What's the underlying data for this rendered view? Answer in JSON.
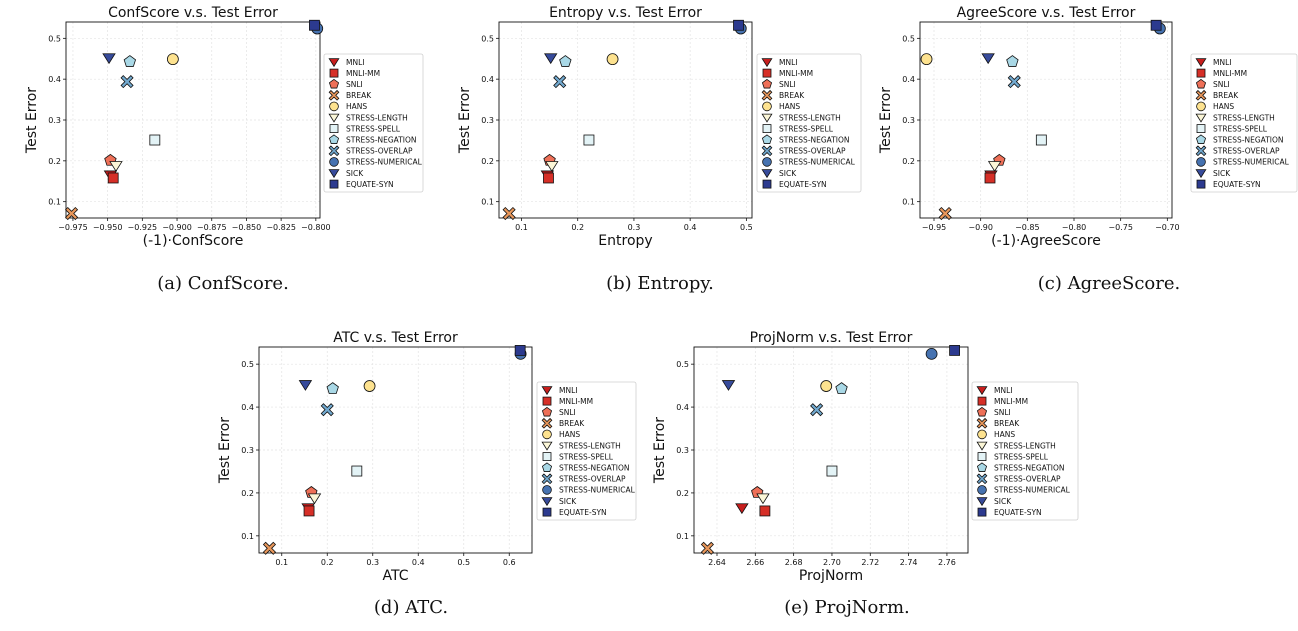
{
  "marker_styles": {
    "MNLI": {
      "shape": "tri-down",
      "color": "#c71e1d"
    },
    "MNLI-MM": {
      "shape": "square",
      "color": "#d62f27"
    },
    "SNLI": {
      "shape": "pentagon",
      "color": "#ee7058"
    },
    "BREAK": {
      "shape": "x-filled",
      "color": "#e8975b"
    },
    "HANS": {
      "shape": "circle",
      "color": "#fde28f"
    },
    "STRESS-LENGTH": {
      "shape": "tri-down",
      "color": "#fbf6d7"
    },
    "STRESS-SPELL": {
      "shape": "square",
      "color": "#e3f3f6"
    },
    "STRESS-NEGATION": {
      "shape": "pentagon",
      "color": "#a9d8e6"
    },
    "STRESS-OVERLAP": {
      "shape": "x-filled",
      "color": "#72a9cf"
    },
    "STRESS-NUMERICAL": {
      "shape": "circle",
      "color": "#4672b0"
    },
    "SICK": {
      "shape": "tri-down",
      "color": "#374b9b"
    },
    "EQUATE-SYN": {
      "shape": "square",
      "color": "#2c3a8f"
    }
  },
  "chart_data": [
    {
      "type": "scatter",
      "title": "ConfScore v.s. Test Error",
      "xlabel": "(-1)·ConfScore",
      "ylabel": "Test Error",
      "caption": "(a) ConfScore.",
      "xlim": [
        -0.98,
        -0.797
      ],
      "ylim": [
        0.06,
        0.54
      ],
      "xticks": [
        -0.975,
        -0.95,
        -0.925,
        -0.9,
        -0.875,
        -0.85,
        -0.825,
        -0.8
      ],
      "xtick_labels": [
        "−0.975",
        "−0.950",
        "−0.925",
        "−0.900",
        "−0.875",
        "−0.850",
        "−0.825",
        "−0.800"
      ],
      "yticks": [
        0.1,
        0.2,
        0.3,
        0.4,
        0.5
      ],
      "ytick_labels": [
        "0.1",
        "0.2",
        "0.3",
        "0.4",
        "0.5"
      ],
      "grid": true,
      "legend": "right",
      "series": [
        {
          "name": "MNLI",
          "x": -0.948,
          "y": 0.165
        },
        {
          "name": "MNLI-MM",
          "x": -0.946,
          "y": 0.158
        },
        {
          "name": "SNLI",
          "x": -0.948,
          "y": 0.201
        },
        {
          "name": "BREAK",
          "x": -0.976,
          "y": 0.071
        },
        {
          "name": "HANS",
          "x": -0.903,
          "y": 0.449
        },
        {
          "name": "STRESS-LENGTH",
          "x": -0.944,
          "y": 0.188
        },
        {
          "name": "STRESS-SPELL",
          "x": -0.916,
          "y": 0.251
        },
        {
          "name": "STRESS-NEGATION",
          "x": -0.934,
          "y": 0.443
        },
        {
          "name": "STRESS-OVERLAP",
          "x": -0.936,
          "y": 0.394
        },
        {
          "name": "STRESS-NUMERICAL",
          "x": -0.799,
          "y": 0.524
        },
        {
          "name": "SICK",
          "x": -0.949,
          "y": 0.452
        },
        {
          "name": "EQUATE-SYN",
          "x": -0.801,
          "y": 0.532
        }
      ]
    },
    {
      "type": "scatter",
      "title": "Entropy v.s. Test Error",
      "xlabel": "Entropy",
      "ylabel": "Test Error",
      "caption": "(b) Entropy.",
      "xlim": [
        0.06,
        0.51
      ],
      "ylim": [
        0.06,
        0.54
      ],
      "xticks": [
        0.1,
        0.2,
        0.3,
        0.4,
        0.5
      ],
      "xtick_labels": [
        "0.1",
        "0.2",
        "0.3",
        "0.4",
        "0.5"
      ],
      "yticks": [
        0.1,
        0.2,
        0.3,
        0.4,
        0.5
      ],
      "ytick_labels": [
        "0.1",
        "0.2",
        "0.3",
        "0.4",
        "0.5"
      ],
      "grid": true,
      "legend": "right",
      "series": [
        {
          "name": "MNLI",
          "x": 0.146,
          "y": 0.165
        },
        {
          "name": "MNLI-MM",
          "x": 0.148,
          "y": 0.158
        },
        {
          "name": "SNLI",
          "x": 0.15,
          "y": 0.201
        },
        {
          "name": "BREAK",
          "x": 0.078,
          "y": 0.071
        },
        {
          "name": "HANS",
          "x": 0.262,
          "y": 0.449
        },
        {
          "name": "STRESS-LENGTH",
          "x": 0.154,
          "y": 0.188
        },
        {
          "name": "STRESS-SPELL",
          "x": 0.22,
          "y": 0.251
        },
        {
          "name": "STRESS-NEGATION",
          "x": 0.178,
          "y": 0.443
        },
        {
          "name": "STRESS-OVERLAP",
          "x": 0.168,
          "y": 0.394
        },
        {
          "name": "STRESS-NUMERICAL",
          "x": 0.49,
          "y": 0.524
        },
        {
          "name": "SICK",
          "x": 0.152,
          "y": 0.452
        },
        {
          "name": "EQUATE-SYN",
          "x": 0.486,
          "y": 0.532
        }
      ]
    },
    {
      "type": "scatter",
      "title": "AgreeScore v.s. Test Error",
      "xlabel": "(-1)·AgreeScore",
      "ylabel": "Test Error",
      "caption": "(c) AgreeScore.",
      "xlim": [
        -0.965,
        -0.695
      ],
      "ylim": [
        0.06,
        0.54
      ],
      "xticks": [
        -0.95,
        -0.9,
        -0.85,
        -0.8,
        -0.75,
        -0.7
      ],
      "xtick_labels": [
        "−0.95",
        "−0.90",
        "−0.85",
        "−0.80",
        "−0.75",
        "−0.70"
      ],
      "yticks": [
        0.1,
        0.2,
        0.3,
        0.4,
        0.5
      ],
      "ytick_labels": [
        "0.1",
        "0.2",
        "0.3",
        "0.4",
        "0.5"
      ],
      "grid": true,
      "legend": "right",
      "series": [
        {
          "name": "MNLI",
          "x": -0.889,
          "y": 0.165
        },
        {
          "name": "MNLI-MM",
          "x": -0.89,
          "y": 0.158
        },
        {
          "name": "SNLI",
          "x": -0.88,
          "y": 0.201
        },
        {
          "name": "BREAK",
          "x": -0.938,
          "y": 0.071
        },
        {
          "name": "HANS",
          "x": -0.958,
          "y": 0.449
        },
        {
          "name": "STRESS-LENGTH",
          "x": -0.885,
          "y": 0.188
        },
        {
          "name": "STRESS-SPELL",
          "x": -0.835,
          "y": 0.251
        },
        {
          "name": "STRESS-NEGATION",
          "x": -0.866,
          "y": 0.443
        },
        {
          "name": "STRESS-OVERLAP",
          "x": -0.864,
          "y": 0.394
        },
        {
          "name": "STRESS-NUMERICAL",
          "x": -0.708,
          "y": 0.524
        },
        {
          "name": "SICK",
          "x": -0.892,
          "y": 0.452
        },
        {
          "name": "EQUATE-SYN",
          "x": -0.712,
          "y": 0.532
        }
      ]
    },
    {
      "type": "scatter",
      "title": "ATC v.s. Test Error",
      "xlabel": "ATC",
      "ylabel": "Test Error",
      "caption": "(d) ATC.",
      "xlim": [
        0.05,
        0.65
      ],
      "ylim": [
        0.06,
        0.54
      ],
      "xticks": [
        0.1,
        0.2,
        0.3,
        0.4,
        0.5,
        0.6
      ],
      "xtick_labels": [
        "0.1",
        "0.2",
        "0.3",
        "0.4",
        "0.5",
        "0.6"
      ],
      "yticks": [
        0.1,
        0.2,
        0.3,
        0.4,
        0.5
      ],
      "ytick_labels": [
        "0.1",
        "0.2",
        "0.3",
        "0.4",
        "0.5"
      ],
      "grid": true,
      "legend": "right",
      "series": [
        {
          "name": "MNLI",
          "x": 0.158,
          "y": 0.165
        },
        {
          "name": "MNLI-MM",
          "x": 0.16,
          "y": 0.158
        },
        {
          "name": "SNLI",
          "x": 0.165,
          "y": 0.201
        },
        {
          "name": "BREAK",
          "x": 0.073,
          "y": 0.071
        },
        {
          "name": "HANS",
          "x": 0.293,
          "y": 0.449
        },
        {
          "name": "STRESS-LENGTH",
          "x": 0.172,
          "y": 0.188
        },
        {
          "name": "STRESS-SPELL",
          "x": 0.265,
          "y": 0.251
        },
        {
          "name": "STRESS-NEGATION",
          "x": 0.212,
          "y": 0.443
        },
        {
          "name": "STRESS-OVERLAP",
          "x": 0.2,
          "y": 0.394
        },
        {
          "name": "STRESS-NUMERICAL",
          "x": 0.625,
          "y": 0.524
        },
        {
          "name": "SICK",
          "x": 0.152,
          "y": 0.452
        },
        {
          "name": "EQUATE-SYN",
          "x": 0.624,
          "y": 0.532
        }
      ]
    },
    {
      "type": "scatter",
      "title": "ProjNorm v.s. Test Error",
      "xlabel": "ProjNorm",
      "ylabel": "Test Error",
      "caption": "(e) ProjNorm.",
      "xlim": [
        2.628,
        2.771
      ],
      "ylim": [
        0.06,
        0.54
      ],
      "xticks": [
        2.64,
        2.66,
        2.68,
        2.7,
        2.72,
        2.74,
        2.76
      ],
      "xtick_labels": [
        "2.64",
        "2.66",
        "2.68",
        "2.70",
        "2.72",
        "2.74",
        "2.76"
      ],
      "yticks": [
        0.1,
        0.2,
        0.3,
        0.4,
        0.5
      ],
      "ytick_labels": [
        "0.1",
        "0.2",
        "0.3",
        "0.4",
        "0.5"
      ],
      "grid": true,
      "legend": "right",
      "series": [
        {
          "name": "MNLI",
          "x": 2.653,
          "y": 0.165
        },
        {
          "name": "MNLI-MM",
          "x": 2.665,
          "y": 0.158
        },
        {
          "name": "SNLI",
          "x": 2.661,
          "y": 0.201
        },
        {
          "name": "BREAK",
          "x": 2.635,
          "y": 0.071
        },
        {
          "name": "HANS",
          "x": 2.697,
          "y": 0.449
        },
        {
          "name": "STRESS-LENGTH",
          "x": 2.664,
          "y": 0.188
        },
        {
          "name": "STRESS-SPELL",
          "x": 2.7,
          "y": 0.251
        },
        {
          "name": "STRESS-NEGATION",
          "x": 2.705,
          "y": 0.443
        },
        {
          "name": "STRESS-OVERLAP",
          "x": 2.692,
          "y": 0.394
        },
        {
          "name": "STRESS-NUMERICAL",
          "x": 2.752,
          "y": 0.524
        },
        {
          "name": "SICK",
          "x": 2.646,
          "y": 0.452
        },
        {
          "name": "EQUATE-SYN",
          "x": 2.764,
          "y": 0.532
        }
      ]
    }
  ]
}
